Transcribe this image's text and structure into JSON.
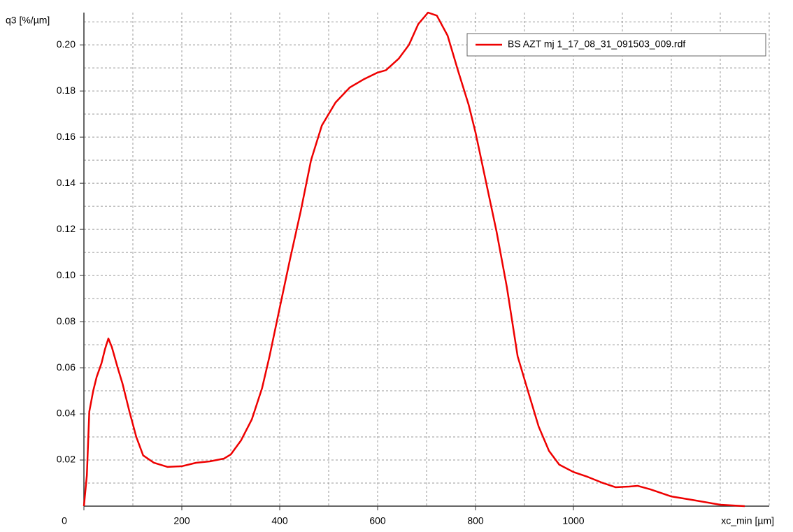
{
  "chart_data": {
    "type": "line",
    "ylabel": "q3 [%/µm]",
    "xlabel": "xc_min [µm]",
    "xlim": [
      0,
      1400
    ],
    "ylim": [
      0,
      0.214
    ],
    "xticks": [
      0,
      200,
      400,
      600,
      800,
      1000
    ],
    "yticks": [
      {
        "value": 0.02,
        "label": "0.02"
      },
      {
        "value": 0.04,
        "label": "0.04"
      },
      {
        "value": 0.06,
        "label": "0.06"
      },
      {
        "value": 0.08,
        "label": "0.08"
      },
      {
        "value": 0.1,
        "label": "0.10"
      },
      {
        "value": 0.12,
        "label": "0.12"
      },
      {
        "value": 0.14,
        "label": "0.14"
      },
      {
        "value": 0.16,
        "label": "0.16"
      },
      {
        "value": 0.18,
        "label": "0.18"
      },
      {
        "value": 0.2,
        "label": "0.20"
      }
    ],
    "grid": true,
    "legend": "upper right",
    "series": [
      {
        "name": "BS AZT mj 1_17_08_31_091503_009.rdf",
        "color": "#ee0000",
        "x": [
          0,
          6,
          11,
          19,
          26,
          36,
          43,
          50,
          57,
          69,
          79,
          93,
          107,
          121,
          143,
          171,
          200,
          229,
          257,
          286,
          300,
          321,
          343,
          364,
          379,
          400,
          421,
          443,
          464,
          486,
          514,
          543,
          571,
          600,
          617,
          643,
          664,
          683,
          703,
          721,
          743,
          764,
          786,
          800,
          821,
          843,
          864,
          886,
          907,
          929,
          950,
          971,
          1000,
          1029,
          1057,
          1086,
          1114,
          1131,
          1157,
          1200,
          1243,
          1300,
          1350
        ],
        "values": [
          0,
          0.0133,
          0.041,
          0.05,
          0.056,
          0.062,
          0.068,
          0.0727,
          0.069,
          0.06,
          0.053,
          0.041,
          0.03,
          0.022,
          0.0188,
          0.017,
          0.0173,
          0.0188,
          0.0194,
          0.0206,
          0.0224,
          0.0285,
          0.0376,
          0.0512,
          0.0648,
          0.086,
          0.107,
          0.128,
          0.15,
          0.165,
          0.175,
          0.1815,
          0.185,
          0.188,
          0.189,
          0.194,
          0.2,
          0.209,
          0.214,
          0.2127,
          0.204,
          0.189,
          0.174,
          0.162,
          0.141,
          0.119,
          0.095,
          0.065,
          0.05,
          0.0345,
          0.024,
          0.018,
          0.0148,
          0.0127,
          0.0103,
          0.0082,
          0.0085,
          0.0088,
          0.0073,
          0.0042,
          0.0027,
          0.0006,
          0
        ]
      }
    ]
  }
}
